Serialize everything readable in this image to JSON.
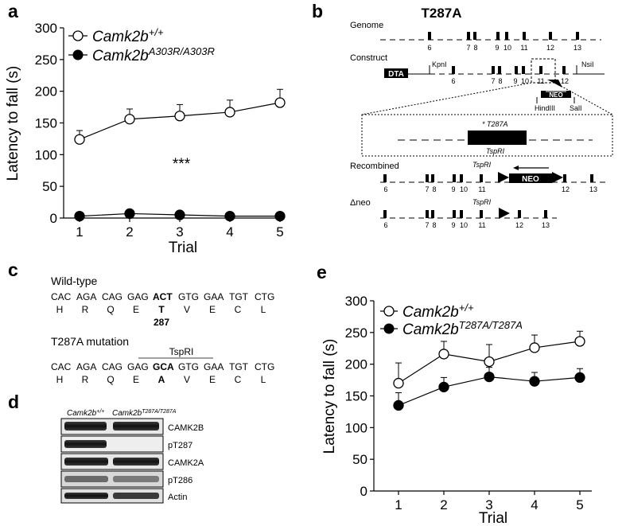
{
  "panels": {
    "a": "a",
    "b": "b",
    "c": "c",
    "d": "d",
    "e": "e"
  },
  "chart_data": [
    {
      "id": "a",
      "type": "line",
      "x": [
        1,
        2,
        3,
        4,
        5
      ],
      "xlabel": "Trial",
      "ylabel": "Latency to fall (s)",
      "ylim": [
        0,
        300
      ],
      "yticks": [
        0,
        50,
        100,
        150,
        200,
        250,
        300
      ],
      "legend_position": "top-left",
      "annotation": "***",
      "series": [
        {
          "name_base": "Camk2b",
          "name_sup": "+/+",
          "marker": "open-circle",
          "values": [
            124,
            156,
            161,
            167,
            182
          ],
          "errors": [
            14,
            16,
            18,
            19,
            21
          ]
        },
        {
          "name_base": "Camk2b",
          "name_sup": "A303R/A303R",
          "marker": "filled-circle",
          "values": [
            3,
            7,
            5,
            3,
            3
          ],
          "errors": [
            1,
            1,
            1,
            1,
            1
          ]
        }
      ]
    },
    {
      "id": "e",
      "type": "line",
      "x": [
        1,
        2,
        3,
        4,
        5
      ],
      "xlabel": "Trial",
      "ylabel": "Latency to fall (s)",
      "ylim": [
        0,
        300
      ],
      "yticks": [
        0,
        50,
        100,
        150,
        200,
        250,
        300
      ],
      "legend_position": "top-left",
      "series": [
        {
          "name_base": "Camk2b",
          "name_sup": "+/+",
          "marker": "open-circle",
          "values": [
            170,
            216,
            204,
            226,
            236
          ],
          "errors": [
            32,
            20,
            27,
            20,
            16
          ]
        },
        {
          "name_base": "Camk2b",
          "name_sup": "T287A/T287A",
          "marker": "filled-circle",
          "values": [
            135,
            164,
            180,
            173,
            179
          ],
          "errors": [
            20,
            15,
            15,
            14,
            14
          ]
        }
      ]
    }
  ],
  "panel_b": {
    "title": "T287A",
    "row_labels": {
      "genome": "Genome",
      "construct": "Construct",
      "recombined": "Recombined",
      "dneo": "Δneo"
    },
    "genome_exons": [
      "6",
      "7",
      "8",
      "9",
      "10",
      "11",
      "12",
      "13"
    ],
    "construct_exons": [
      "6",
      "7",
      "8",
      "9",
      "10",
      "11",
      "12"
    ],
    "recombined_exons": [
      "6",
      "7",
      "8",
      "9",
      "10",
      "11",
      "12",
      "13"
    ],
    "dneo_exons": [
      "6",
      "7",
      "8",
      "9",
      "10",
      "11",
      "12",
      "13"
    ],
    "dta": "DTA",
    "neo": "NEO",
    "sites": {
      "kpni": "KpnI",
      "nsii": "NsiI",
      "hindiii": "HindIII",
      "sali": "SalI"
    },
    "mutation": "* T287A",
    "tspri": "TspRI"
  },
  "panel_c": {
    "wt_title": "Wild-type",
    "wt_codons": [
      "CAC",
      "AGA",
      "CAG",
      "GAG",
      "ACT",
      "GTG",
      "GAA",
      "TGT",
      "CTG"
    ],
    "wt_aa": [
      "H",
      "R",
      "Q",
      "E",
      "T",
      "V",
      "E",
      "C",
      "L"
    ],
    "position": "287",
    "mut_title": "T287A mutation",
    "site": "TspRI",
    "mut_codons": [
      "CAC",
      "AGA",
      "CAG",
      "GAG",
      "GCA",
      "GTG",
      "GAA",
      "TGT",
      "CTG"
    ],
    "mut_aa": [
      "H",
      "R",
      "Q",
      "E",
      "A",
      "V",
      "E",
      "C",
      "L"
    ]
  },
  "panel_d": {
    "lanes": [
      {
        "base": "Camk2b",
        "sup": "+/+"
      },
      {
        "base": "Camk2b",
        "sup": "T287A/T287A"
      }
    ],
    "bands": [
      "CAMK2B",
      "pT287",
      "CAMK2A",
      "pT286",
      "Actin"
    ]
  }
}
